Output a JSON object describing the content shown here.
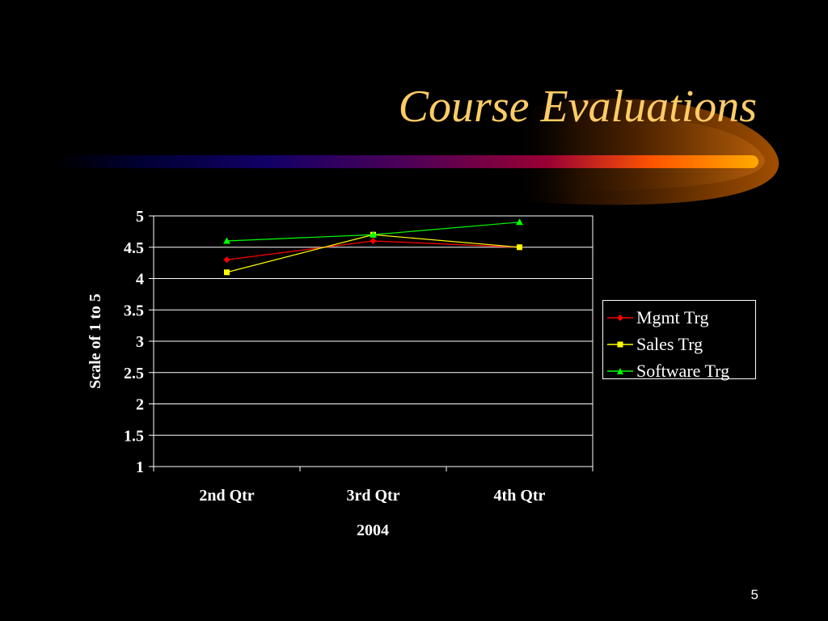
{
  "slide": {
    "title": "Course Evaluations",
    "page_number": "5"
  },
  "colors": {
    "background": "#000000",
    "title": "#FFCC66",
    "text": "#FFFFFF",
    "grid": "#FFFFFF",
    "accent_orange": "#FF9900"
  },
  "chart_data": {
    "type": "line",
    "categories": [
      "2nd Qtr",
      "3rd Qtr",
      "4th Qtr"
    ],
    "xlabel": "2004",
    "ylabel": "Scale of 1 to 5",
    "ylim": [
      1,
      5
    ],
    "yticks": [
      "1",
      "1.5",
      "2",
      "2.5",
      "3",
      "3.5",
      "4",
      "4.5",
      "5"
    ],
    "grid": true,
    "legend_position": "right",
    "series": [
      {
        "name": "Mgmt Trg",
        "values": [
          4.3,
          4.6,
          4.5
        ],
        "color": "#FF0000",
        "marker": "diamond"
      },
      {
        "name": "Sales Trg",
        "values": [
          4.1,
          4.7,
          4.5
        ],
        "color": "#FFFF00",
        "marker": "square"
      },
      {
        "name": "Software Trg",
        "values": [
          4.6,
          4.7,
          4.9
        ],
        "color": "#00FF00",
        "marker": "triangle"
      }
    ]
  }
}
